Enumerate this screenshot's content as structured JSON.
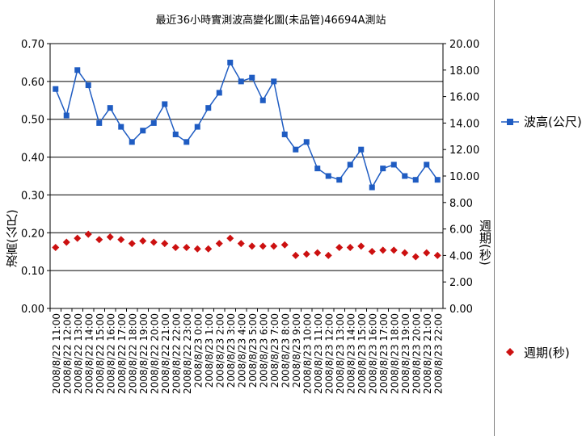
{
  "chart_data": {
    "type": "line",
    "title": "最近36小時實測波高變化圖(未品管)46694A測站",
    "ylabel_left": "波高(公尺)",
    "ylabel_right": "週期(秒)",
    "ylim_left": [
      0,
      0.7
    ],
    "ylim_right": [
      0,
      20
    ],
    "yticks_left": [
      "0.00",
      "0.10",
      "0.20",
      "0.30",
      "0.40",
      "0.50",
      "0.60",
      "0.70"
    ],
    "yticks_right": [
      "0.00",
      "2.00",
      "4.00",
      "6.00",
      "8.00",
      "10.00",
      "12.00",
      "14.00",
      "16.00",
      "18.00",
      "20.00"
    ],
    "grid": true,
    "legend_position": "right",
    "categories": [
      "2008/8/22 11:00",
      "2008/8/22 12:00",
      "2008/8/22 13:00",
      "2008/8/22 14:00",
      "2008/8/22 15:00",
      "2008/8/22 16:00",
      "2008/8/22 17:00",
      "2008/8/22 18:00",
      "2008/8/22 19:00",
      "2008/8/22 20:00",
      "2008/8/22 21:00",
      "2008/8/22 22:00",
      "2008/8/22 23:00",
      "2008/8/23 0:00",
      "2008/8/23 1:00",
      "2008/8/23 2:00",
      "2008/8/23 3:00",
      "2008/8/23 4:00",
      "2008/8/23 5:00",
      "2008/8/23 6:00",
      "2008/8/23 7:00",
      "2008/8/23 8:00",
      "2008/8/23 9:00",
      "2008/8/23 10:00",
      "2008/8/23 11:00",
      "2008/8/23 12:00",
      "2008/8/23 13:00",
      "2008/8/23 14:00",
      "2008/8/23 15:00",
      "2008/8/23 16:00",
      "2008/8/23 17:00",
      "2008/8/23 18:00",
      "2008/8/23 19:00",
      "2008/8/23 20:00",
      "2008/8/23 21:00",
      "2008/8/23 22:00"
    ],
    "series": [
      {
        "name": "波高(公尺)",
        "axis": "left",
        "style": "line-square",
        "color": "#1f5cc2",
        "values": [
          0.58,
          0.51,
          0.63,
          0.59,
          0.49,
          0.53,
          0.48,
          0.44,
          0.47,
          0.49,
          0.54,
          0.46,
          0.44,
          0.48,
          0.53,
          0.57,
          0.65,
          0.6,
          0.61,
          0.55,
          0.6,
          0.46,
          0.42,
          0.44,
          0.37,
          0.35,
          0.34,
          0.38,
          0.42,
          0.32,
          0.37,
          0.38,
          0.35,
          0.34,
          0.38,
          0.34
        ]
      },
      {
        "name": "週期(秒)",
        "axis": "right",
        "style": "diamond",
        "color": "#cc1010",
        "values": [
          4.6,
          5.0,
          5.3,
          5.6,
          5.2,
          5.4,
          5.2,
          4.9,
          5.1,
          5.0,
          4.9,
          4.6,
          4.6,
          4.5,
          4.5,
          4.9,
          5.3,
          4.9,
          4.7,
          4.7,
          4.7,
          4.8,
          4.0,
          4.1,
          4.2,
          4.0,
          4.6,
          4.6,
          4.7,
          4.3,
          4.4,
          4.4,
          4.2,
          3.9,
          4.2,
          4.0
        ]
      }
    ]
  },
  "colors": {
    "plot_bg": "#ffffff",
    "grid": "#000000",
    "frame": "#808080"
  }
}
